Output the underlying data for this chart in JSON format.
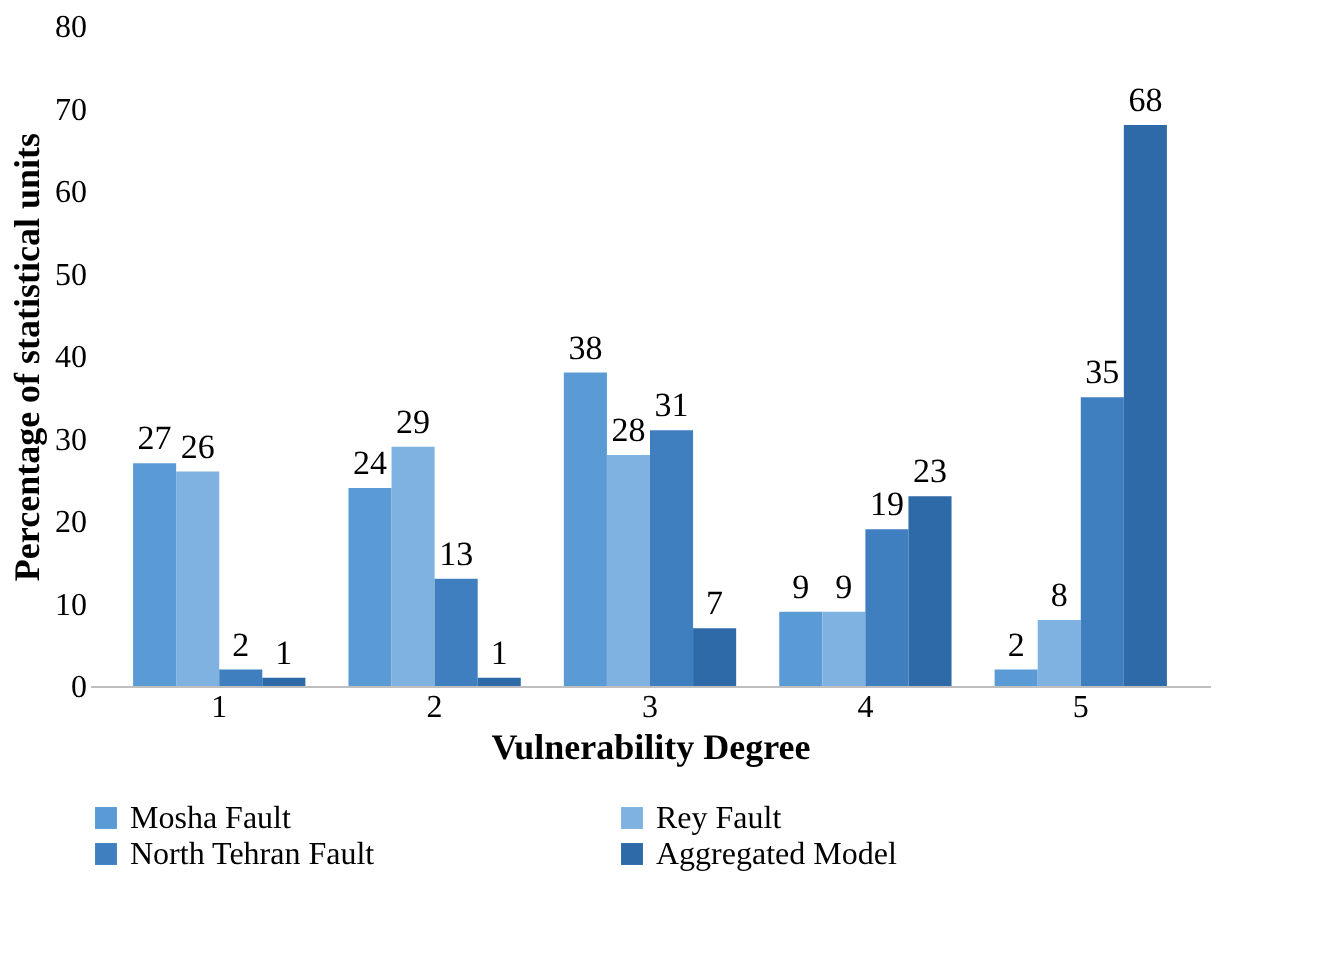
{
  "chart_data": {
    "type": "bar",
    "xlabel": "Vulnerability Degree",
    "ylabel": "Percentage of statistical units",
    "categories": [
      "1",
      "2",
      "3",
      "4",
      "5"
    ],
    "series": [
      {
        "name": "Mosha Fault",
        "color": "#5b9bd5",
        "values": [
          27,
          24,
          38,
          9,
          2
        ]
      },
      {
        "name": "Rey Fault",
        "color": "#7fb2e0",
        "values": [
          26,
          29,
          28,
          9,
          8
        ]
      },
      {
        "name": "North Tehran Fault",
        "color": "#3f7fc0",
        "values": [
          2,
          13,
          31,
          19,
          35
        ]
      },
      {
        "name": "Aggregated Model",
        "color": "#2e6aa8",
        "values": [
          1,
          1,
          7,
          23,
          68
        ]
      }
    ],
    "ylim": [
      0,
      80
    ],
    "yticks": [
      0,
      10,
      20,
      30,
      40,
      50,
      60,
      70,
      80
    ],
    "grid": false,
    "legend": "bottom",
    "data_labels": true
  }
}
